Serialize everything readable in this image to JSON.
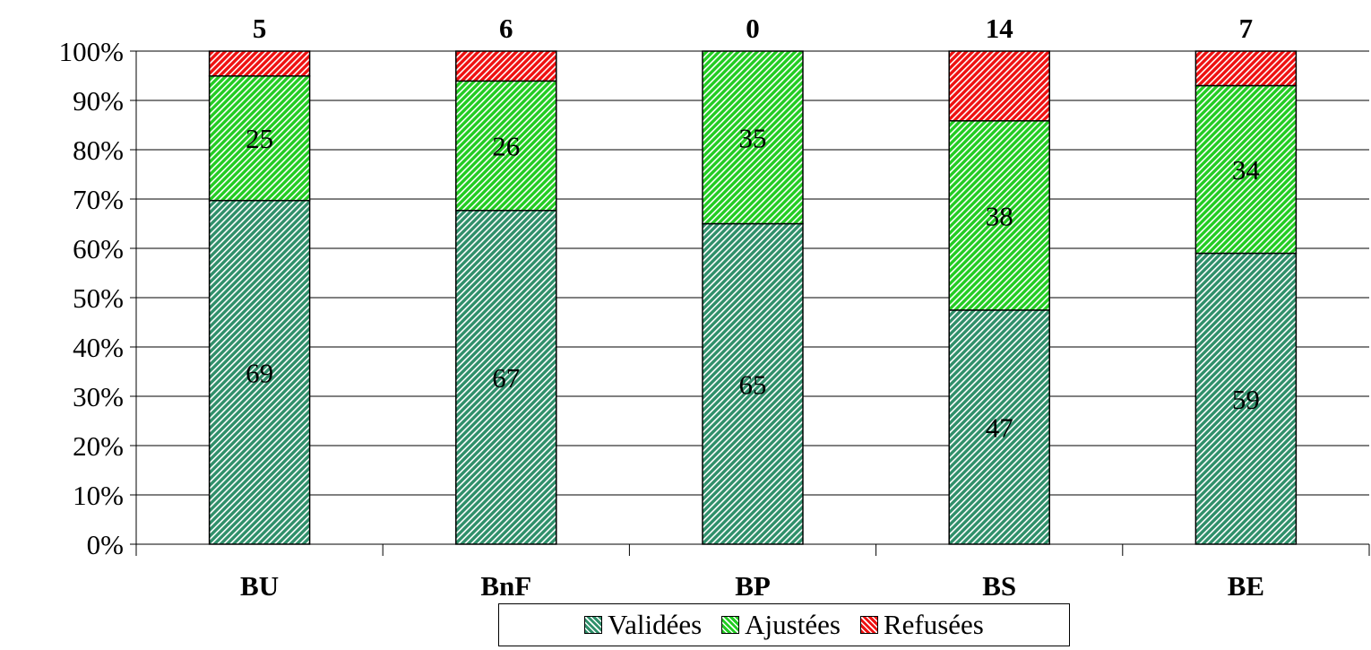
{
  "chart_data": {
    "type": "bar",
    "stacked": true,
    "normalized": true,
    "categories": [
      "BU",
      "BnF",
      "BP",
      "BS",
      "BE"
    ],
    "series": [
      {
        "name": "Validées",
        "values": [
          69,
          67,
          65,
          47,
          59
        ],
        "color": "#2f8f6a",
        "pattern_bg": "#ffffff"
      },
      {
        "name": "Ajustées",
        "values": [
          25,
          26,
          35,
          38,
          34
        ],
        "color": "#22cc22",
        "pattern_bg": "#ffffff"
      },
      {
        "name": "Refusées",
        "values": [
          5,
          6,
          0,
          14,
          7
        ],
        "color": "#ee1111",
        "pattern_bg": "#ffffff"
      }
    ],
    "top_labels": [
      "5",
      "6",
      "0",
      "14",
      "7"
    ],
    "y_ticks": [
      "0%",
      "10%",
      "20%",
      "30%",
      "40%",
      "50%",
      "60%",
      "70%",
      "80%",
      "90%",
      "100%"
    ],
    "ylim": [
      0,
      100
    ],
    "grid": true,
    "legend_position": "bottom",
    "title": "",
    "xlabel": "",
    "ylabel": ""
  }
}
